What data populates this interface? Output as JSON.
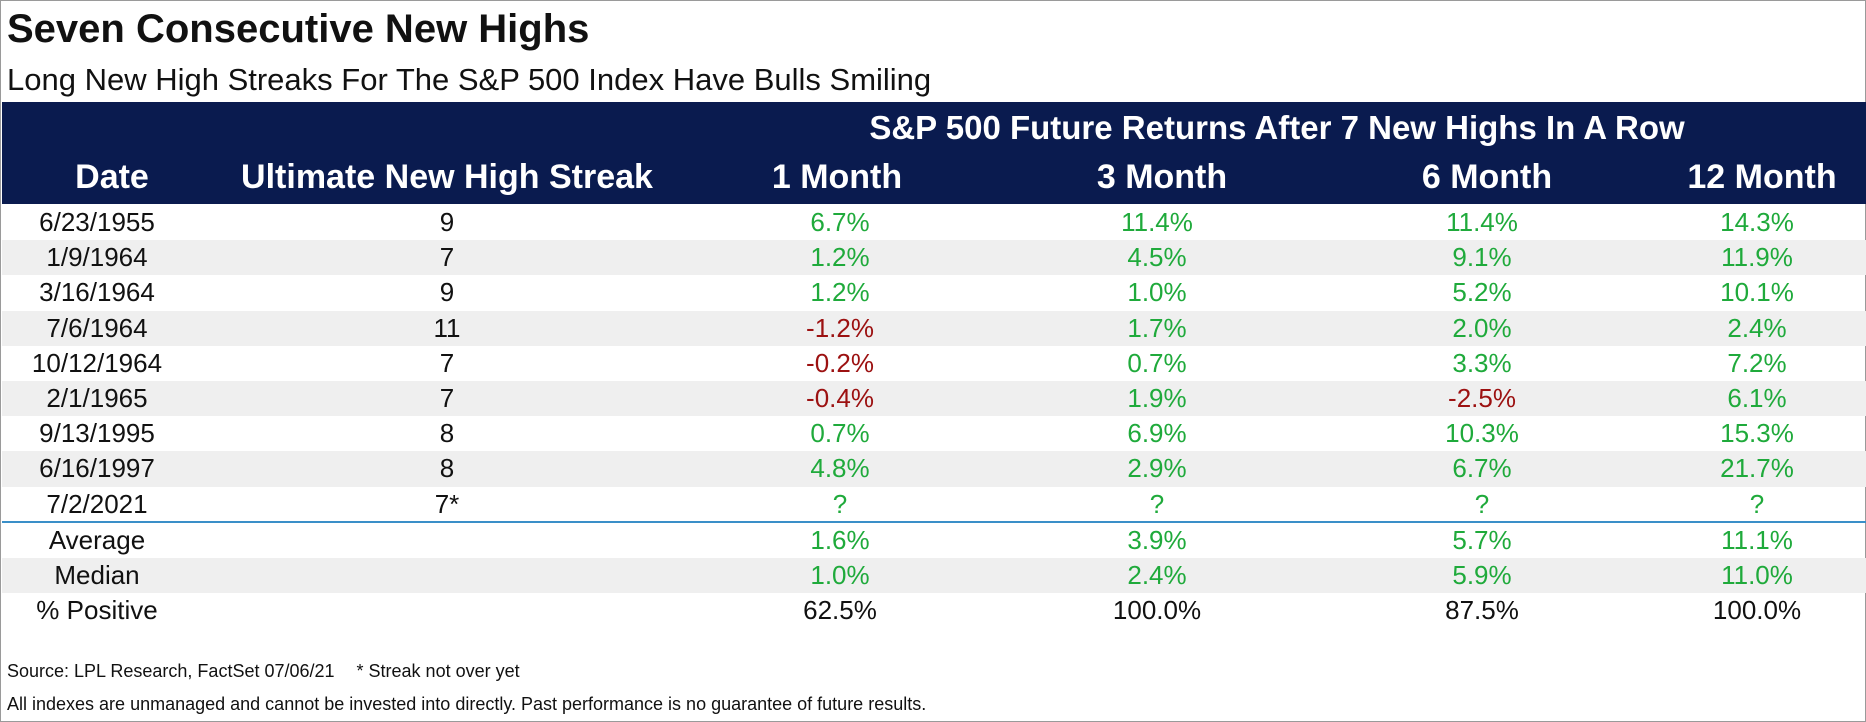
{
  "title": "Seven Consecutive New Highs",
  "subtitle": "Long New High Streaks For The S&P 500 Index Have Bulls Smiling",
  "table": {
    "group_header": "S&P 500 Future Returns After 7 New Highs In A Row",
    "columns": [
      "Date",
      "Ultimate New High Streak",
      "1 Month",
      "3 Month",
      "6 Month",
      "12 Month"
    ],
    "rows": [
      [
        "6/23/1955",
        "9",
        "6.7%",
        "11.4%",
        "11.4%",
        "14.3%"
      ],
      [
        "1/9/1964",
        "7",
        "1.2%",
        "4.5%",
        "9.1%",
        "11.9%"
      ],
      [
        "3/16/1964",
        "9",
        "1.2%",
        "1.0%",
        "5.2%",
        "10.1%"
      ],
      [
        "7/6/1964",
        "11",
        "-1.2%",
        "1.7%",
        "2.0%",
        "2.4%"
      ],
      [
        "10/12/1964",
        "7",
        "-0.2%",
        "0.7%",
        "3.3%",
        "7.2%"
      ],
      [
        "2/1/1965",
        "7",
        "-0.4%",
        "1.9%",
        "-2.5%",
        "6.1%"
      ],
      [
        "9/13/1995",
        "8",
        "0.7%",
        "6.9%",
        "10.3%",
        "15.3%"
      ],
      [
        "6/16/1997",
        "8",
        "4.8%",
        "2.9%",
        "6.7%",
        "21.7%"
      ],
      [
        "7/2/2021",
        "7*",
        "?",
        "?",
        "?",
        "?"
      ]
    ],
    "summary": [
      [
        "Average",
        "",
        "1.6%",
        "3.9%",
        "5.7%",
        "11.1%"
      ],
      [
        "Median",
        "",
        "1.0%",
        "2.4%",
        "5.9%",
        "11.0%"
      ],
      [
        "% Positive",
        "",
        "62.5%",
        "100.0%",
        "87.5%",
        "100.0%"
      ]
    ]
  },
  "footer": {
    "source": "Source: LPL Research, FactSet 07/06/21",
    "note": "* Streak not over yet",
    "disclaimer": "All indexes are unmanaged and cannot be invested into directly. Past performance is no guarantee of future results."
  },
  "colors": {
    "header_bg": "#0a1b4f",
    "positive": "#1faa3b",
    "negative": "#9c1111",
    "divider": "#3a8fc8",
    "stripe": "#efefef"
  }
}
